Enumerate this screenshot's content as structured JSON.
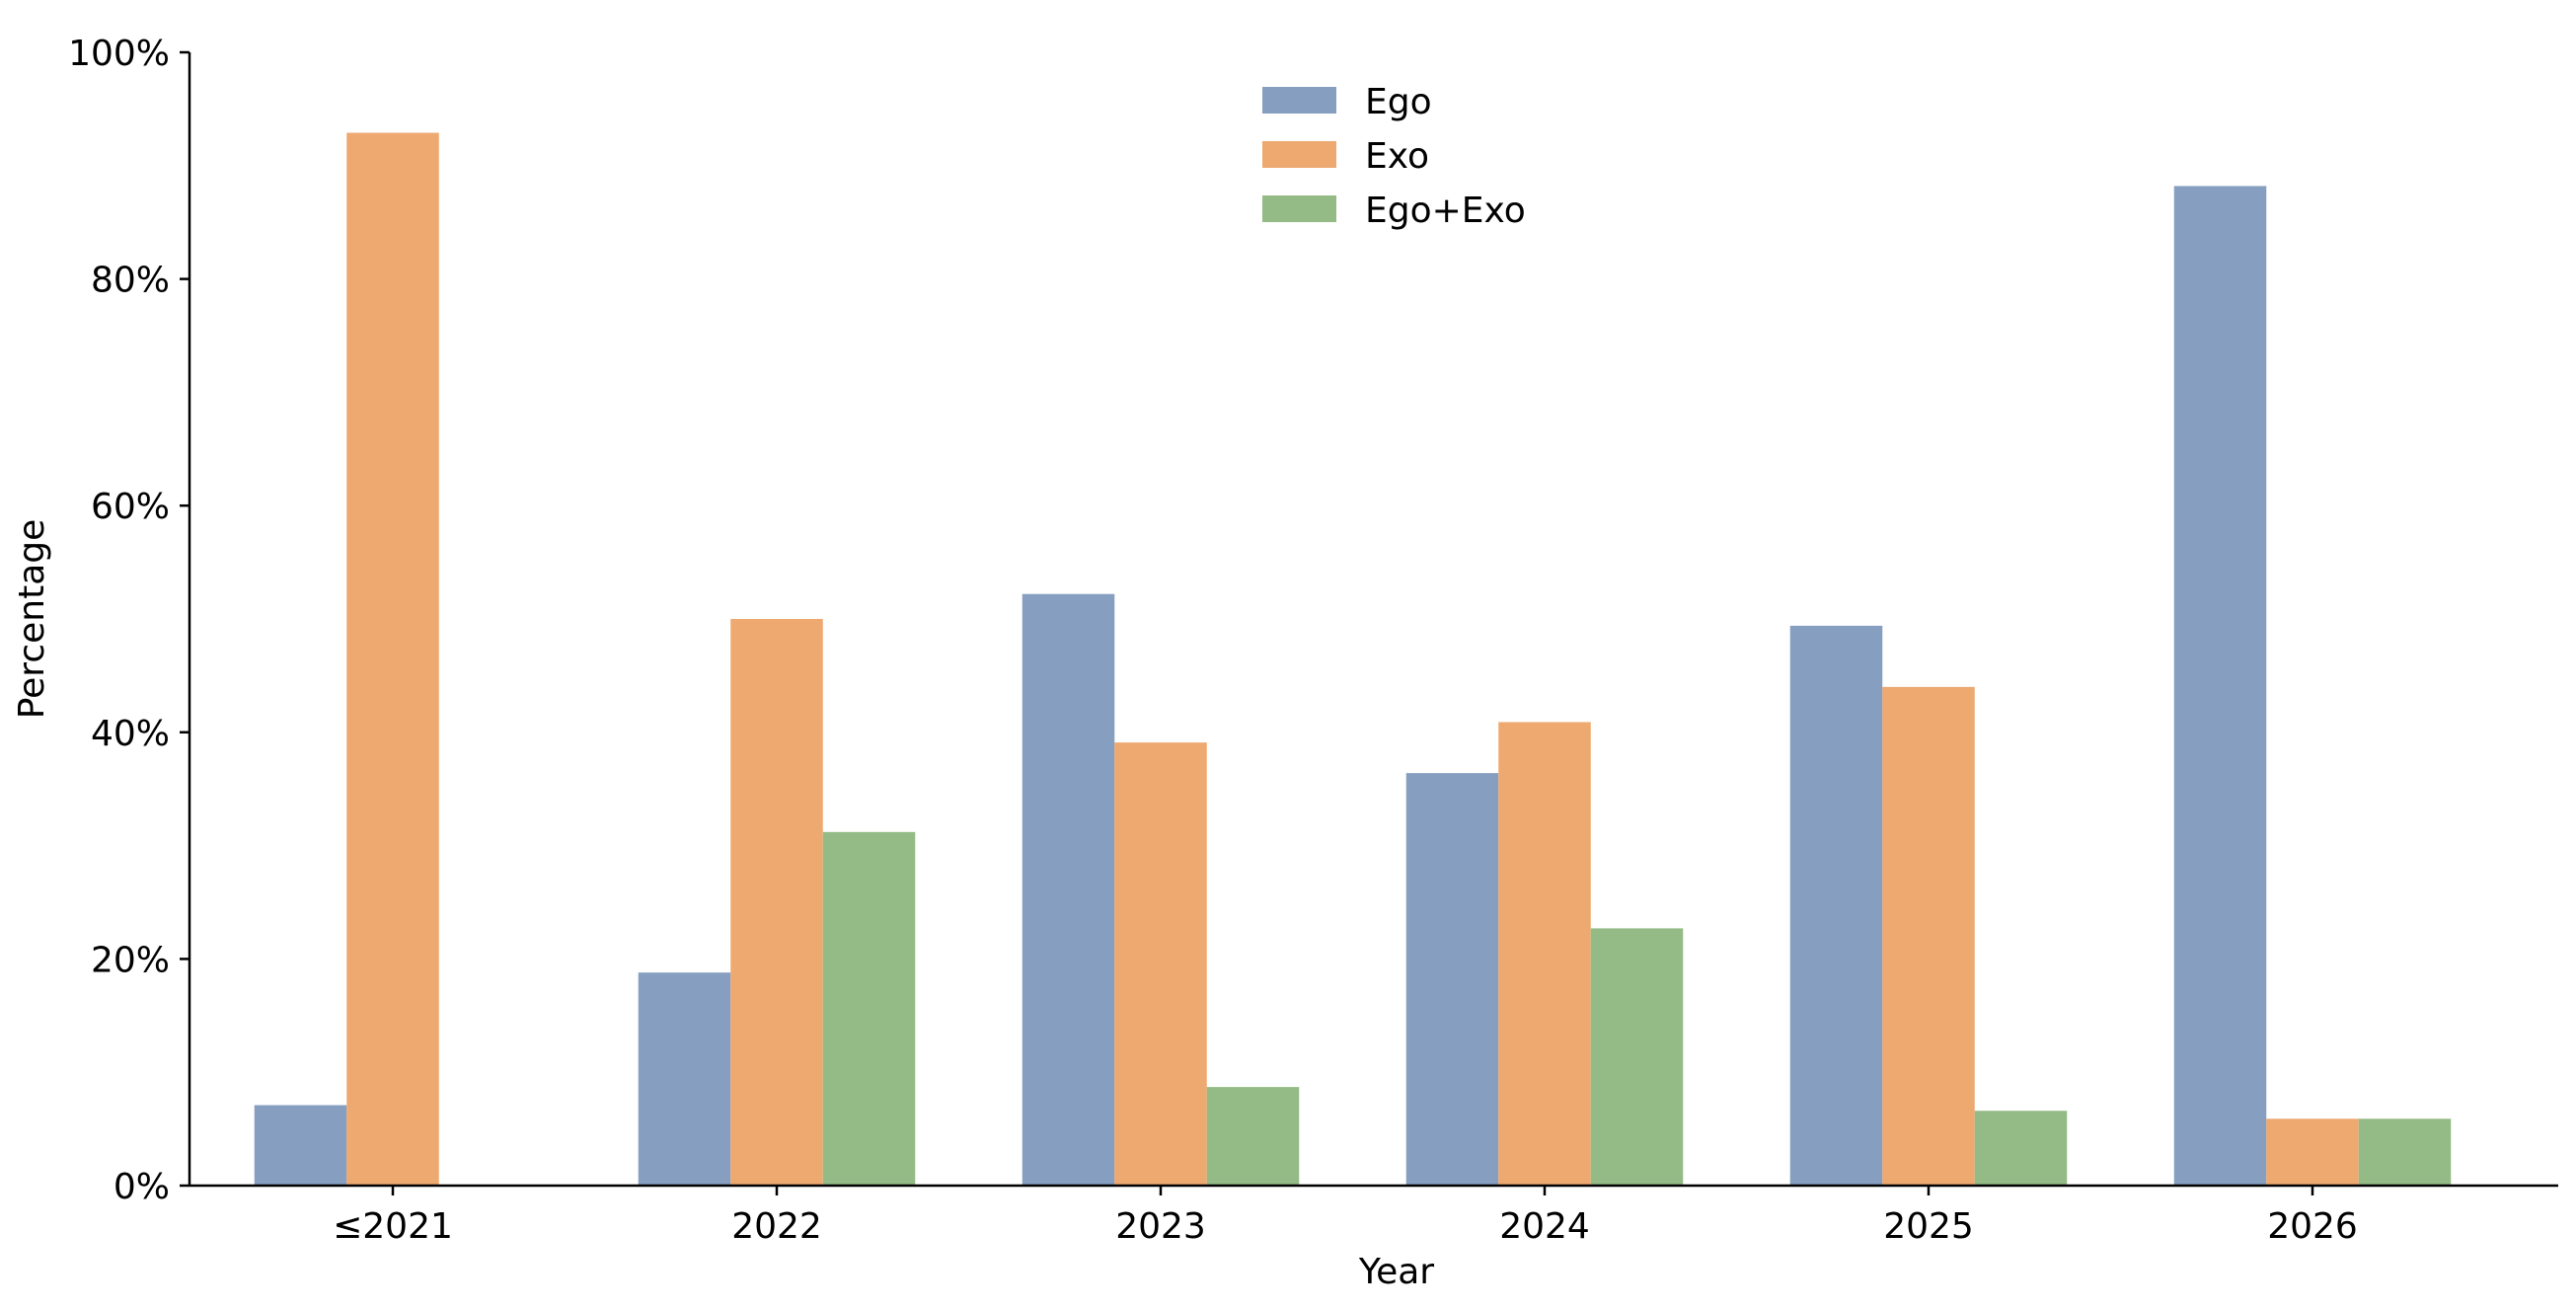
{
  "chart_data": {
    "type": "bar",
    "title": "",
    "xlabel": "Year",
    "ylabel": "Percentage",
    "categories": [
      "≤2021",
      "2022",
      "2023",
      "2024",
      "2025",
      "2026"
    ],
    "series": [
      {
        "name": "Ego",
        "color": "#869EBF",
        "values": [
          7.1,
          18.8,
          52.2,
          36.4,
          49.4,
          88.2
        ]
      },
      {
        "name": "Exo",
        "color": "#EDA970",
        "values": [
          92.9,
          50.0,
          39.1,
          40.9,
          44.0,
          5.9
        ]
      },
      {
        "name": "Ego+Exo",
        "color": "#94BB85",
        "values": [
          0,
          31.2,
          8.7,
          22.7,
          6.6,
          5.9
        ]
      }
    ],
    "ylim": [
      0,
      100
    ],
    "yticks": [
      "0%",
      "20%",
      "40%",
      "60%",
      "80%",
      "100%"
    ],
    "grid": false,
    "legend_position": "top-center"
  }
}
